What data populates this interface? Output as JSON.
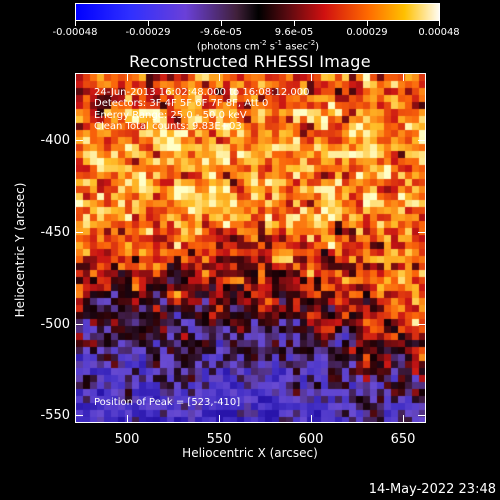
{
  "colorbar": {
    "ticks": [
      "-0.00048",
      "-0.00029",
      "-9.6e-05",
      "9.6e-05",
      "0.00029",
      "0.00048"
    ],
    "units_text": "(photons cm",
    "units_sup1": "-2",
    "units_mid1": " s",
    "units_sup2": "-1",
    "units_mid2": " asec",
    "units_sup3": "-2",
    "units_end": ")"
  },
  "title": "Reconstructed RHESSI Image",
  "info": {
    "time": "24-Jun-2013 16:02:48.000 to 16:08:12.000",
    "detectors": "Detectors: 3F 4F 5F 6F 7F 8F, Att 0",
    "energy": "Energy Range: 25.0 - 50.0 keV",
    "clean": "Clean     Total counts: 9.83E+03",
    "peak": "Position of Peak = [523,-410]"
  },
  "axes": {
    "y_ticks": [
      "-400",
      "-450",
      "-500",
      "-550"
    ],
    "x_ticks": [
      "500",
      "550",
      "600",
      "650"
    ],
    "y_title": "Heliocentric Y (arcsec)",
    "x_title": "Heliocentric X (arcsec)"
  },
  "timestamp": "14-May-2022 23:48",
  "colors": {
    "background": "#000000",
    "low": "#3a2cc8",
    "high": "#ffff80"
  }
}
